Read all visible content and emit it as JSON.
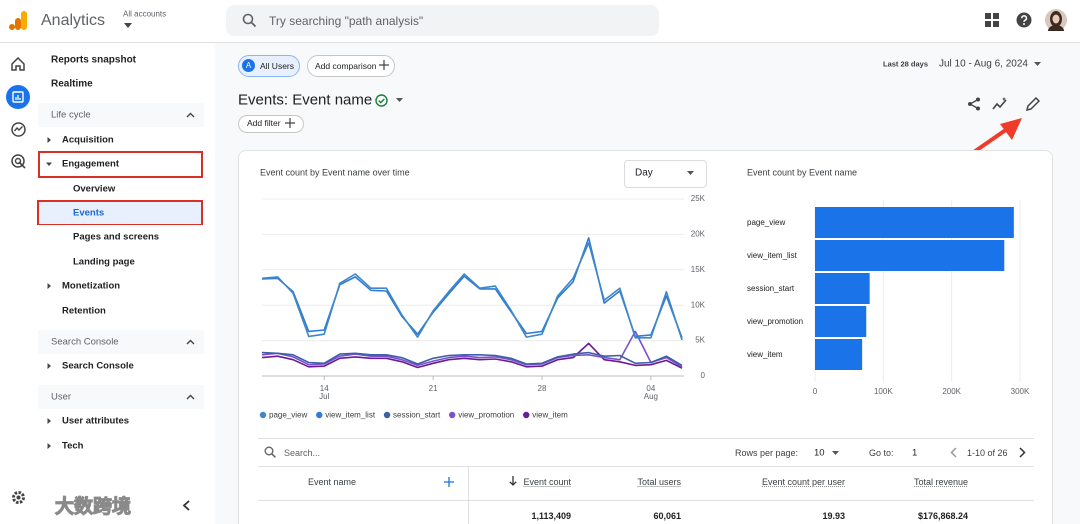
{
  "header": {
    "app_name": "Analytics",
    "account_label": "All accounts",
    "search_placeholder": "Try searching \"path analysis\""
  },
  "sidebar": {
    "top": [
      "Reports snapshot",
      "Realtime"
    ],
    "sections": [
      {
        "title": "Life cycle",
        "items": [
          {
            "label": "Acquisition",
            "state": "collapsed"
          },
          {
            "label": "Engagement",
            "state": "expanded",
            "children": [
              {
                "label": "Overview"
              },
              {
                "label": "Events",
                "selected": true
              },
              {
                "label": "Pages and screens"
              },
              {
                "label": "Landing page"
              }
            ]
          },
          {
            "label": "Monetization",
            "state": "collapsed"
          },
          {
            "label": "Retention"
          }
        ]
      },
      {
        "title": "Search Console",
        "items": [
          {
            "label": "Search Console",
            "state": "collapsed"
          }
        ]
      },
      {
        "title": "User",
        "items": [
          {
            "label": "User attributes",
            "state": "collapsed"
          },
          {
            "label": "Tech",
            "state": "collapsed"
          }
        ]
      }
    ]
  },
  "watermark": "大数跨境",
  "toolbar": {
    "segment_badge": "A",
    "segment": "All Users",
    "add_comparison": "Add comparison",
    "date_prefix": "Last 28 days",
    "date_range": "Jul 10 - Aug 6, 2024"
  },
  "page_title": "Events: Event name",
  "add_filter": "Add filter",
  "chart_data": [
    {
      "type": "line",
      "title": "Event count by Event name over time",
      "granularity": "Day",
      "categories": [
        null,
        null,
        null,
        null,
        "14",
        null,
        null,
        null,
        null,
        null,
        null,
        "21",
        null,
        null,
        null,
        null,
        null,
        null,
        "28",
        null,
        null,
        null,
        null,
        null,
        null,
        "04",
        null,
        null
      ],
      "x_sublabels": [
        null,
        null,
        null,
        null,
        "Jul",
        null,
        null,
        null,
        null,
        null,
        null,
        null,
        null,
        null,
        null,
        null,
        null,
        null,
        null,
        null,
        null,
        null,
        null,
        null,
        null,
        "Aug",
        null,
        null
      ],
      "ylim": [
        0,
        25000
      ],
      "yticks": [
        0,
        {
          "value": 5000,
          "label": "5K"
        },
        {
          "value": 10000,
          "label": "10K"
        },
        {
          "value": 15000,
          "label": "15K"
        },
        {
          "value": 20000,
          "label": "20K"
        },
        {
          "value": 25000,
          "label": "25K"
        }
      ],
      "grid": true,
      "series": [
        {
          "name": "page_view",
          "color": "#3f88c5",
          "values": [
            13800,
            14000,
            11700,
            5600,
            5900,
            13100,
            14400,
            12400,
            12400,
            8600,
            5500,
            9200,
            11900,
            14400,
            12400,
            12700,
            9300,
            5500,
            5900,
            11300,
            13800,
            18800,
            10700,
            12400,
            5400,
            5400,
            11900,
            5100
          ]
        },
        {
          "name": "view_item_list",
          "color": "#2e7bd8",
          "values": [
            13700,
            13800,
            11900,
            6300,
            6500,
            12900,
            14000,
            12100,
            12000,
            8400,
            5900,
            9000,
            11600,
            14100,
            12300,
            12300,
            9100,
            6000,
            6300,
            11000,
            13300,
            19500,
            10300,
            12000,
            5600,
            5800,
            11300,
            5400
          ]
        },
        {
          "name": "session_start",
          "color": "#3d5ea8",
          "values": [
            3300,
            3200,
            3000,
            1900,
            1800,
            3100,
            3200,
            3000,
            3000,
            2600,
            1700,
            2500,
            2900,
            3000,
            3000,
            2900,
            2500,
            1700,
            1800,
            2700,
            3100,
            3300,
            2800,
            2900,
            1800,
            1900,
            2800,
            1500
          ]
        },
        {
          "name": "view_promotion",
          "color": "#7b52c8",
          "values": [
            3000,
            3200,
            2700,
            1600,
            1700,
            2800,
            3100,
            2800,
            2800,
            2300,
            1500,
            2100,
            2600,
            2800,
            2600,
            2700,
            2300,
            1600,
            1700,
            2600,
            2900,
            3000,
            2600,
            2300,
            6300,
            1900,
            2600,
            1300
          ]
        },
        {
          "name": "view_item",
          "color": "#6a1b9a",
          "values": [
            2600,
            2800,
            2300,
            1300,
            1400,
            2500,
            2700,
            2500,
            2500,
            2000,
            1200,
            1800,
            2300,
            2500,
            2300,
            2400,
            2000,
            1300,
            1400,
            2300,
            2600,
            4600,
            2300,
            2000,
            1500,
            1600,
            2200,
            1100
          ]
        }
      ]
    },
    {
      "type": "bar",
      "orientation": "horizontal",
      "title": "Event count by Event name",
      "categories": [
        "page_view",
        "view_item_list",
        "session_start",
        "view_promotion",
        "view_item"
      ],
      "values": [
        291000,
        277000,
        80000,
        75000,
        69000
      ],
      "color": "#1a73e8",
      "xlim": [
        0,
        300000
      ],
      "xticks": [
        0,
        {
          "value": 100000,
          "label": "100K"
        },
        {
          "value": 200000,
          "label": "200K"
        },
        {
          "value": 300000,
          "label": "300K"
        }
      ],
      "grid": true
    }
  ],
  "table": {
    "search_placeholder": "Search...",
    "rows_per_page_label": "Rows per page:",
    "rows_per_page": "10",
    "goto_label": "Go to:",
    "goto_value": "1",
    "page_info": "1-10 of 26",
    "columns": [
      "Event name",
      "Event count",
      "Total users",
      "Event count per user",
      "Total revenue"
    ],
    "totals": [
      "1,113,409",
      "60,061",
      "19.93",
      "$176,868.24"
    ]
  }
}
